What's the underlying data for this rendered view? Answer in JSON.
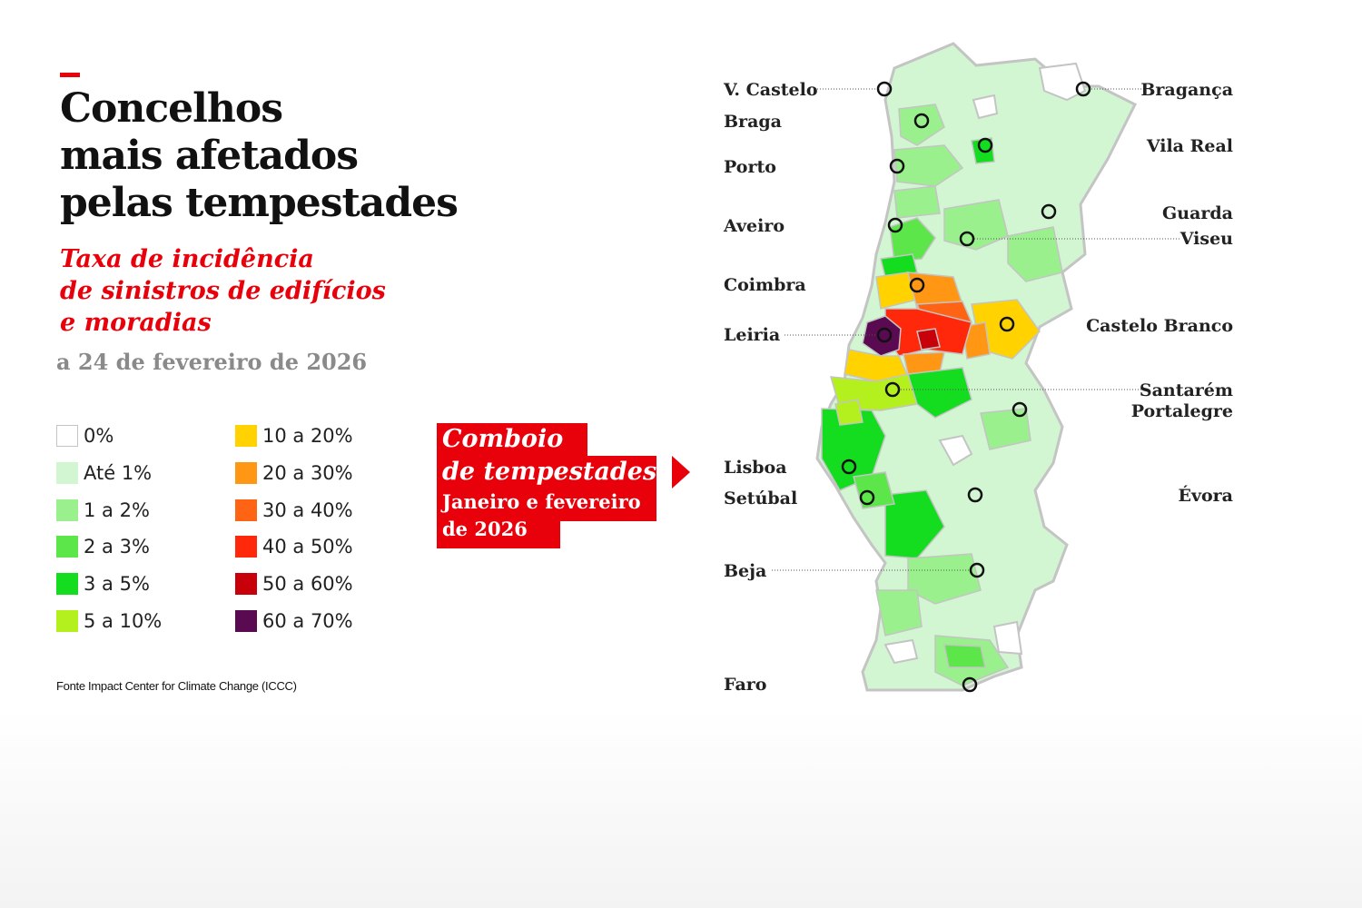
{
  "title_lines": [
    "Concelhos",
    "mais afetados",
    "pelas tempestades"
  ],
  "subtitle_lines": [
    "Taxa de incidência",
    "de sinistros de edifícios",
    "e moradias"
  ],
  "date": "a 24 de fevereiro de 2026",
  "legend": [
    {
      "label": "0%",
      "color": "#ffffff"
    },
    {
      "label": "Até 1%",
      "color": "#d2f5d2"
    },
    {
      "label": "1 a 2%",
      "color": "#9af08c"
    },
    {
      "label": "2 a 3%",
      "color": "#5ce64a"
    },
    {
      "label": "3 a 5%",
      "color": "#14dc1e"
    },
    {
      "label": "5 a 10%",
      "color": "#b4f01e"
    },
    {
      "label": "10 a 20%",
      "color": "#ffd200"
    },
    {
      "label": "20 a 30%",
      "color": "#ff9614"
    },
    {
      "label": "30 a 40%",
      "color": "#ff6414"
    },
    {
      "label": "40 a 50%",
      "color": "#ff280a"
    },
    {
      "label": "50 a 60%",
      "color": "#c8000a"
    },
    {
      "label": "60 a 70%",
      "color": "#5a0a50"
    }
  ],
  "source": "Fonte Impact Center for Climate Change (ICCC)",
  "callout": {
    "title_lines": [
      "Comboio",
      "de tempestades"
    ],
    "subtitle_lines": [
      "Janeiro e fevereiro",
      "de 2026"
    ]
  },
  "cities": [
    {
      "name": "V. Castelo",
      "icon": "city-marker-circle"
    },
    {
      "name": "Braga",
      "icon": "city-marker-circle"
    },
    {
      "name": "Porto",
      "icon": "city-marker-circle"
    },
    {
      "name": "Aveiro",
      "icon": "city-marker-circle"
    },
    {
      "name": "Coimbra",
      "icon": "city-marker-circle"
    },
    {
      "name": "Leiria",
      "icon": "city-marker-circle"
    },
    {
      "name": "Lisboa",
      "icon": "city-marker-circle"
    },
    {
      "name": "Setúbal",
      "icon": "city-marker-circle"
    },
    {
      "name": "Beja",
      "icon": "city-marker-circle"
    },
    {
      "name": "Faro",
      "icon": "city-marker-circle"
    },
    {
      "name": "Bragança",
      "icon": "city-marker-circle"
    },
    {
      "name": "Vila Real",
      "icon": "city-marker-circle"
    },
    {
      "name": "Guarda",
      "icon": "city-marker-circle"
    },
    {
      "name": "Viseu",
      "icon": "city-marker-circle"
    },
    {
      "name": "Castelo Branco",
      "icon": "city-marker-circle"
    },
    {
      "name": "Santarém",
      "icon": "city-marker-circle"
    },
    {
      "name": "Portalegre",
      "icon": "city-marker-circle"
    },
    {
      "name": "Évora",
      "icon": "city-marker-circle"
    }
  ],
  "colors": {
    "accent": "#e8000b",
    "map_border": "#c4c4c4"
  }
}
